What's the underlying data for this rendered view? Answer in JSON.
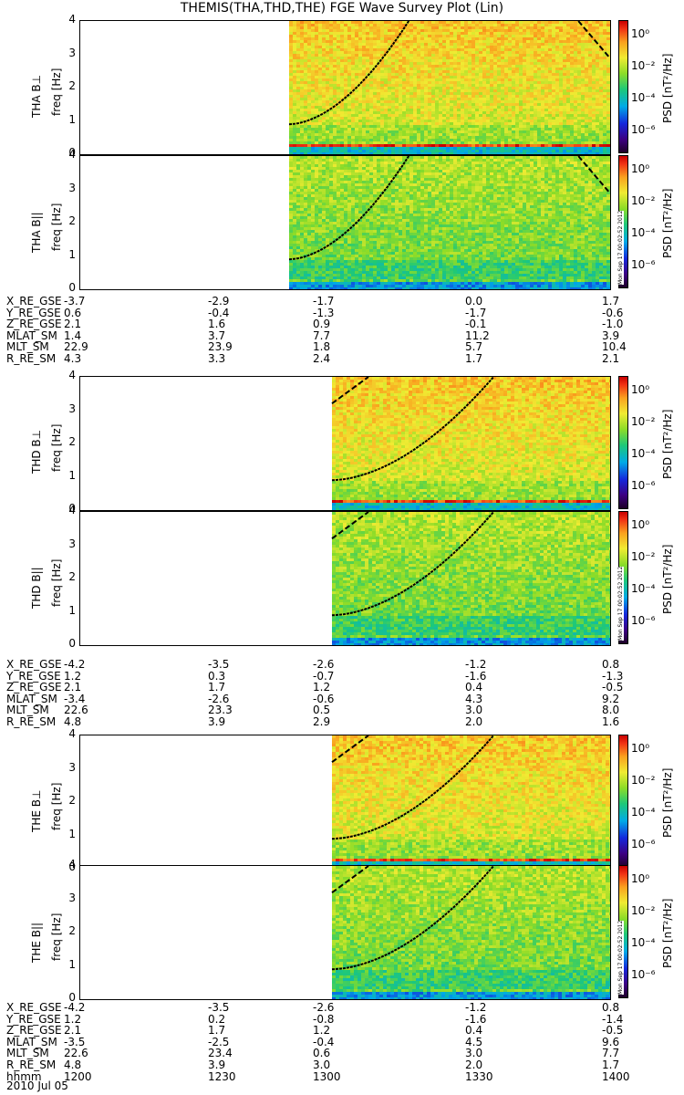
{
  "title": "THEMIS(THA,THD,THE) FGE Wave Survey Plot (Lin)",
  "chart_data": {
    "type": "heatmap",
    "yticks": [
      "0",
      "1",
      "2",
      "3",
      "4"
    ],
    "ylim": [
      0,
      4
    ],
    "colorbar": {
      "label": "PSD [nT²/Hz]",
      "ticks": [
        "10⁰",
        "10⁻²",
        "10⁻⁴",
        "10⁻⁶"
      ]
    },
    "panels": [
      {
        "ylabel": "THA B⊥",
        "yunit": "freq [Hz]",
        "start_frac": 0.395,
        "stamp": "Mon Sep 17 00:02:52 2012",
        "group": 0
      },
      {
        "ylabel": "THA B||",
        "yunit": "freq [Hz]",
        "start_frac": 0.395,
        "stamp": "Mon Sep 17 00:02:52 2012",
        "group": 0
      },
      {
        "ylabel": "THD B⊥",
        "yunit": "freq [Hz]",
        "start_frac": 0.475,
        "stamp": "Mon Sep 17 00:02:52 2012",
        "group": 1
      },
      {
        "ylabel": "THD B||",
        "yunit": "freq [Hz]",
        "start_frac": 0.475,
        "stamp": "Mon Sep 17 00:02:52 2012",
        "group": 1
      },
      {
        "ylabel": "THE B⊥",
        "yunit": "freq [Hz]",
        "start_frac": 0.475,
        "stamp": "Mon Sep 17 00:02:52 2012",
        "group": 2
      },
      {
        "ylabel": "THE B||",
        "yunit": "freq [Hz]",
        "start_frac": 0.475,
        "stamp": "Mon Sep 17 00:02:52 2012",
        "group": 2
      }
    ],
    "ephemeris": [
      {
        "rows": [
          {
            "name": "X_RE_GSE",
            "values": [
              "-3.7",
              "-2.9",
              "-1.7",
              "0.0",
              "1.7"
            ]
          },
          {
            "name": "Y_RE_GSE",
            "values": [
              "0.6",
              "-0.4",
              "-1.3",
              "-1.7",
              "-0.6"
            ]
          },
          {
            "name": "Z_RE_GSE",
            "values": [
              "2.1",
              "1.6",
              "0.9",
              "-0.1",
              "-1.0"
            ]
          },
          {
            "name": "MLAT_SM",
            "values": [
              "1.4",
              "3.7",
              "7.7",
              "11.2",
              "3.9"
            ]
          },
          {
            "name": "MLT_SM",
            "values": [
              "22.9",
              "23.9",
              "1.8",
              "5.7",
              "10.4"
            ]
          },
          {
            "name": "R_RE_SM",
            "values": [
              "4.3",
              "3.3",
              "2.4",
              "1.7",
              "2.1"
            ]
          }
        ]
      },
      {
        "rows": [
          {
            "name": "X_RE_GSE",
            "values": [
              "-4.2",
              "-3.5",
              "-2.6",
              "-1.2",
              "0.8"
            ]
          },
          {
            "name": "Y_RE_GSE",
            "values": [
              "1.2",
              "0.3",
              "-0.7",
              "-1.6",
              "-1.3"
            ]
          },
          {
            "name": "Z_RE_GSE",
            "values": [
              "2.1",
              "1.7",
              "1.2",
              "0.4",
              "-0.5"
            ]
          },
          {
            "name": "MLAT_SM",
            "values": [
              "-3.4",
              "-2.6",
              "-0.6",
              "4.3",
              "9.2"
            ]
          },
          {
            "name": "MLT_SM",
            "values": [
              "22.6",
              "23.3",
              "0.5",
              "3.0",
              "8.0"
            ]
          },
          {
            "name": "R_RE_SM",
            "values": [
              "4.8",
              "3.9",
              "2.9",
              "2.0",
              "1.6"
            ]
          }
        ]
      },
      {
        "rows": [
          {
            "name": "X_RE_GSE",
            "values": [
              "-4.2",
              "-3.5",
              "-2.6",
              "-1.2",
              "0.8"
            ]
          },
          {
            "name": "Y_RE_GSE",
            "values": [
              "1.2",
              "0.2",
              "-0.8",
              "-1.6",
              "-1.4"
            ]
          },
          {
            "name": "Z_RE_GSE",
            "values": [
              "2.1",
              "1.7",
              "1.2",
              "0.4",
              "-0.5"
            ]
          },
          {
            "name": "MLAT_SM",
            "values": [
              "-3.5",
              "-2.5",
              "-0.4",
              "4.5",
              "9.6"
            ]
          },
          {
            "name": "MLT_SM",
            "values": [
              "22.6",
              "23.4",
              "0.6",
              "3.0",
              "7.7"
            ]
          },
          {
            "name": "R_RE_SM",
            "values": [
              "4.8",
              "3.9",
              "3.0",
              "2.0",
              "1.7"
            ]
          },
          {
            "name": "hhmm",
            "values": [
              "1200",
              "1230",
              "1300",
              "1330",
              "1400"
            ]
          }
        ]
      }
    ],
    "date": "2010 Jul 05"
  }
}
